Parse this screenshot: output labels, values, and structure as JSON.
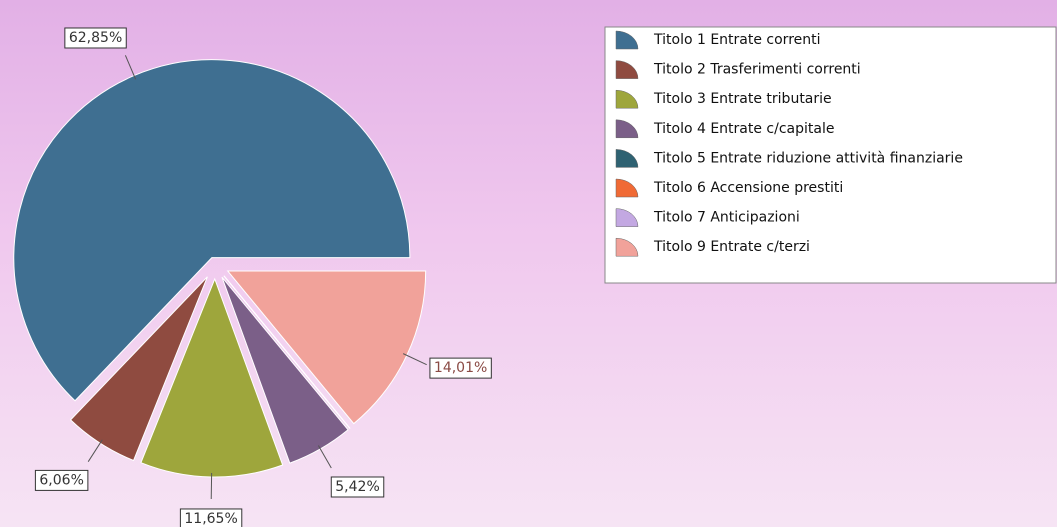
{
  "chart_data": {
    "type": "pie",
    "categories": [
      "Titolo 1 Entrate correnti",
      "Titolo 2 Trasferimenti correnti",
      "Titolo 3 Entrate tributarie",
      "Titolo 4 Entrate c/capitale",
      "Titolo 5 Entrate riduzione attività finanziarie",
      "Titolo 6 Accensione prestiti",
      "Titolo 7 Anticipazioni",
      "Titolo 9 Entrate c/terzi"
    ],
    "values": [
      62.85,
      6.06,
      11.65,
      5.42,
      0,
      0,
      0,
      14.01
    ],
    "value_labels": [
      "62,85%",
      "6,06%",
      "11,65%",
      "5,42%",
      null,
      null,
      null,
      "14,01%"
    ],
    "colors": [
      "#3f6f91",
      "#8f4b40",
      "#9ea63c",
      "#7b5f88",
      "#2f6272",
      "#f06a35",
      "#c3a8e2",
      "#f1a29a"
    ],
    "legend": "top-right"
  }
}
